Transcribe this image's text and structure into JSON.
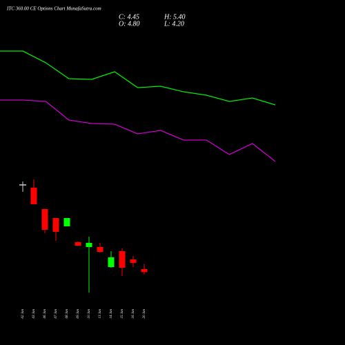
{
  "header": {
    "title": "ITC 360.00 CE Options Chart MunafaSutra.com",
    "close": "C: 4.45",
    "high": "H: 5.40",
    "open": "O: 4.80",
    "low": "L: 4.20"
  },
  "chart_data": [
    {
      "type": "candlestick",
      "categories": [
        "02 Jan",
        "03 Jan",
        "06 Jan",
        "07 Jan",
        "08 Jan",
        "09 Jan",
        "10 Jan",
        "13 Jan",
        "14 Jan",
        "15 Jan",
        "16 Jan",
        "20 Jan"
      ],
      "open": [
        14.56,
        14.24,
        11.76,
        10.72,
        9.76,
        7.92,
        7.36,
        7.36,
        5.04,
        6.88,
        5.92,
        4.8
      ],
      "high": [
        14.96,
        15.2,
        11.76,
        10.72,
        10.72,
        8.0,
        8.56,
        7.84,
        6.88,
        7.2,
        6.32,
        5.4
      ],
      "low": [
        13.76,
        12.32,
        8.96,
        8.08,
        9.76,
        7.44,
        2.08,
        6.72,
        4.96,
        4.0,
        5.04,
        4.2
      ],
      "close": [
        14.56,
        12.32,
        9.36,
        9.12,
        10.72,
        7.52,
        7.84,
        6.8,
        6.16,
        4.96,
        5.52,
        4.45
      ],
      "up_color": "#00ff00",
      "down_color": "#ff0000",
      "flat_color": "#cccccc",
      "ylim": [
        -4,
        36
      ]
    },
    {
      "type": "line",
      "x": [
        0,
        1,
        2,
        3,
        4,
        5,
        6,
        7,
        8,
        9,
        10,
        11,
        12
      ],
      "series": [
        {
          "color": "#00ee00",
          "values": [
            30.08,
            30.08,
            28.72,
            26.88,
            26.8,
            27.68,
            25.84,
            26.0,
            25.36,
            24.96,
            24.24,
            24.64,
            23.84
          ]
        },
        {
          "color": "#cc00cc",
          "values": [
            24.4,
            24.4,
            24.24,
            22.08,
            21.68,
            21.6,
            20.48,
            20.88,
            19.76,
            19.76,
            18.08,
            19.36,
            17.28
          ]
        }
      ],
      "xlim": [
        0,
        15.04
      ],
      "ylim": [
        -4,
        36
      ]
    }
  ]
}
